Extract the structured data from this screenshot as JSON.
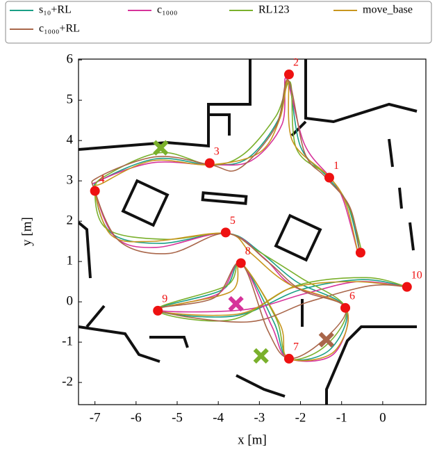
{
  "chart_data": {
    "type": "line",
    "xlabel": "x [m]",
    "ylabel": "y [m]",
    "xlim": [
      -7.4,
      1.05
    ],
    "ylim": [
      -2.55,
      6.02
    ],
    "xticks": [
      -7,
      -6,
      -5,
      -4,
      -3,
      -2,
      -1,
      0
    ],
    "yticks": [
      -2,
      -1,
      0,
      1,
      2,
      3,
      4,
      5,
      6
    ],
    "series": [
      {
        "name": "s₁₀+RL",
        "color": "#1a9f86",
        "x": [
          -0.55,
          -0.85,
          -1.35,
          -2.0,
          -2.3,
          -2.55,
          -3.3,
          -4.2,
          -5.5,
          -6.8,
          -7.0,
          -6.6,
          -5.4,
          -3.8,
          -3.0,
          -2.1,
          -0.9,
          -1.3,
          -2.3,
          -2.65,
          -3.45,
          -3.9,
          -5.5,
          -3.6,
          -2.0,
          -0.5,
          0.6
        ],
        "values": [
          1.2,
          2.4,
          3.1,
          3.85,
          5.5,
          4.5,
          3.55,
          3.4,
          3.55,
          3.05,
          2.75,
          1.7,
          1.45,
          1.7,
          1.25,
          0.5,
          -0.15,
          -1.2,
          -1.4,
          -0.5,
          0.96,
          0.3,
          -0.2,
          -0.35,
          0.3,
          0.55,
          0.37
        ]
      },
      {
        "name": "c₁₀₀₀",
        "color": "#d6339a",
        "x": [
          -0.6,
          -0.95,
          -1.25,
          -1.9,
          -2.35,
          -2.45,
          -3.2,
          -4.2,
          -5.6,
          -6.9,
          -7.0,
          -6.5,
          -5.5,
          -3.8,
          -2.9,
          -2.2,
          -0.9,
          -1.2,
          -2.3,
          -2.7,
          -3.45,
          -4.0,
          -5.5,
          -3.4,
          -1.9,
          -0.6,
          0.6
        ],
        "values": [
          1.2,
          2.5,
          3.05,
          3.9,
          5.55,
          4.4,
          3.5,
          3.4,
          3.45,
          3.0,
          2.75,
          1.6,
          1.35,
          1.7,
          1.1,
          0.4,
          -0.15,
          -1.3,
          -1.4,
          -0.6,
          0.96,
          0.2,
          -0.2,
          -0.2,
          0.2,
          0.5,
          0.37
        ]
      },
      {
        "name": "RL123",
        "color": "#7ab02c",
        "x": [
          -0.5,
          -0.8,
          -1.3,
          -2.1,
          -2.25,
          -2.6,
          -3.4,
          -4.2,
          -5.4,
          -6.7,
          -7.0,
          -6.7,
          -5.3,
          -3.8,
          -3.1,
          -2.0,
          -0.9,
          -1.4,
          -2.3,
          -2.6,
          -3.45,
          -3.8,
          -5.5,
          -3.7,
          -2.1,
          -0.4,
          0.6
        ],
        "values": [
          1.2,
          2.3,
          3.1,
          3.8,
          5.45,
          4.6,
          3.65,
          3.4,
          3.7,
          3.15,
          2.75,
          1.8,
          1.55,
          1.7,
          1.3,
          0.6,
          -0.15,
          -1.1,
          -1.4,
          -0.4,
          0.96,
          0.4,
          -0.2,
          -0.45,
          0.4,
          0.6,
          0.37
        ]
      },
      {
        "name": "move_base",
        "color": "#c8961e",
        "x": [
          -0.6,
          -0.9,
          -1.3,
          -2.2,
          -2.3,
          -2.5,
          -3.0,
          -4.2,
          -5.6,
          -6.8,
          -7.0,
          -6.6,
          -5.6,
          -3.8,
          -3.2,
          -2.3,
          -0.9,
          -1.2,
          -2.3,
          -2.5,
          -3.45,
          -3.7,
          -5.5,
          -3.5,
          -2.2,
          -0.7,
          0.6
        ],
        "values": [
          1.2,
          2.45,
          3.1,
          4.0,
          5.5,
          4.55,
          3.7,
          3.4,
          3.5,
          2.95,
          2.75,
          1.65,
          1.5,
          1.7,
          1.2,
          0.45,
          -0.15,
          -1.25,
          -1.4,
          -0.55,
          0.96,
          0.25,
          -0.2,
          -0.3,
          0.35,
          0.5,
          0.37
        ]
      },
      {
        "name": "c₁₀₀₀+RL",
        "color": "#a9664a",
        "x": [
          -0.55,
          -0.8,
          -1.4,
          -1.9,
          -2.3,
          -2.6,
          -3.5,
          -4.2,
          -5.5,
          -6.9,
          -7.0,
          -6.4,
          -5.2,
          -3.8,
          -2.8,
          -2.0,
          -0.9,
          -1.5,
          -2.3,
          -2.8,
          -3.45,
          -4.1,
          -5.5,
          -3.3,
          -1.8,
          -0.3,
          0.6
        ],
        "values": [
          1.2,
          2.35,
          3.1,
          3.7,
          5.5,
          4.35,
          3.3,
          3.4,
          3.6,
          3.1,
          2.75,
          1.5,
          1.2,
          1.7,
          1.0,
          0.3,
          -0.15,
          -1.0,
          -1.4,
          -0.7,
          0.96,
          0.1,
          -0.2,
          -0.5,
          0.0,
          0.4,
          0.37
        ]
      }
    ],
    "waypoints": {
      "color": "#ee1111",
      "labels": [
        null,
        "1",
        "2",
        "3",
        "4",
        "5",
        "8",
        "10",
        "6",
        "9",
        "7"
      ],
      "x": [
        -0.54,
        -1.3,
        -2.28,
        -4.21,
        -7.0,
        -3.82,
        -3.45,
        0.59,
        -0.91,
        -5.47,
        -2.28
      ],
      "y": [
        1.22,
        3.08,
        5.64,
        3.44,
        2.75,
        1.72,
        0.96,
        0.37,
        -0.15,
        -0.22,
        -1.41
      ]
    },
    "crosses": [
      {
        "x": -5.4,
        "y": 3.82,
        "color": "#7ab02c"
      },
      {
        "x": -2.96,
        "y": -1.34,
        "color": "#7ab02c"
      },
      {
        "x": -3.57,
        "y": -0.05,
        "color": "#d6339a"
      },
      {
        "x": -1.37,
        "y": -0.94,
        "color": "#a9664a"
      }
    ]
  }
}
